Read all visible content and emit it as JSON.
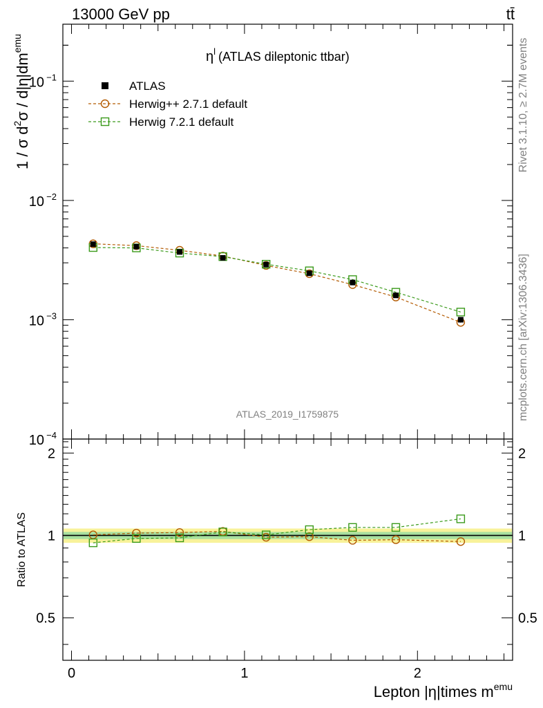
{
  "header": {
    "energy": "13000 GeV pp",
    "process": "tt̄"
  },
  "side": {
    "rivet": "Rivet 3.1.10, ≥ 2.7M events",
    "mcplots": "mcplots.cern.ch [arXiv:1306.3436]"
  },
  "watermark": "ATLAS_2019_I1759875",
  "chart_data": [
    {
      "type": "scatter",
      "title_sym": "η",
      "title_sup": "l",
      "title_text": "(ATLAS dileptonic ttbar)",
      "ylabel": "1 / σ d²σ / d|η|dm^emu",
      "ylabel_main": "1 / σ d",
      "ylabel_sup1": "2",
      "ylabel_mid": "σ / d|η|dm",
      "ylabel_sup2": "emu",
      "yscale": "log",
      "ylim": [
        0.0001,
        0.3
      ],
      "yticks": [
        {
          "value": 0.1,
          "base": "10",
          "exp": "−1"
        },
        {
          "value": 0.01,
          "base": "10",
          "exp": "−2"
        },
        {
          "value": 0.001,
          "base": "10",
          "exp": "−3"
        },
        {
          "value": 0.0001,
          "base": "10",
          "exp": "−4"
        }
      ],
      "xlim": [
        -0.05,
        2.55
      ],
      "x": [
        0.125,
        0.375,
        0.625,
        0.875,
        1.125,
        1.375,
        1.625,
        1.875,
        2.25
      ],
      "series": [
        {
          "name": "ATLAS",
          "color": "#000000",
          "marker": "filled-square",
          "values": [
            0.0043,
            0.0041,
            0.0037,
            0.0033,
            0.0029,
            0.00245,
            0.00205,
            0.0016,
            0.001
          ],
          "errors": [
            0.0002,
            0.00018,
            0.00015,
            0.00014,
            0.00012,
            0.0001,
            8e-05,
            7e-05,
            5e-05
          ]
        },
        {
          "name": "Herwig++ 2.7.1 default",
          "color": "#b35a00",
          "marker": "open-circle",
          "line": "dashed",
          "values": [
            0.00433,
            0.00418,
            0.00382,
            0.00342,
            0.00285,
            0.00243,
            0.00197,
            0.00155,
            0.00095
          ]
        },
        {
          "name": "Herwig 7.2.1 default",
          "color": "#3a9a1a",
          "marker": "open-square",
          "line": "dashed",
          "values": [
            0.00403,
            0.004,
            0.00362,
            0.00338,
            0.00292,
            0.00257,
            0.00217,
            0.0017,
            0.00116
          ]
        }
      ],
      "legend": "top-left"
    },
    {
      "type": "scatter",
      "ylabel": "Ratio to ATLAS",
      "xlabel_main": "Lepton |η|times m",
      "xlabel_sup": "emu",
      "ylim": [
        0.35,
        2.25
      ],
      "yticks": [
        0.5,
        1,
        2
      ],
      "ytick_labels": [
        "0.5",
        "1",
        "2"
      ],
      "xticks": [
        0,
        1,
        2
      ],
      "xtick_labels": [
        "0",
        "1",
        "2"
      ],
      "x": [
        0.125,
        0.375,
        0.625,
        0.875,
        1.125,
        1.375,
        1.625,
        1.875,
        2.25
      ],
      "band": {
        "inner": 0.03,
        "outer": 0.06,
        "inner_color": "#a8e0a0",
        "outer_color": "#f8f29a"
      },
      "series": [
        {
          "name": "Herwig++ 2.7.1 default",
          "color": "#b35a00",
          "marker": "open-circle",
          "line": "dashed",
          "values": [
            1.005,
            1.02,
            1.025,
            1.035,
            0.985,
            0.99,
            0.96,
            0.965,
            0.95
          ]
        },
        {
          "name": "Herwig 7.2.1 default",
          "color": "#3a9a1a",
          "marker": "open-square",
          "line": "dashed",
          "values": [
            0.94,
            0.975,
            0.98,
            1.03,
            1.005,
            1.05,
            1.07,
            1.07,
            1.15
          ]
        }
      ]
    }
  ]
}
